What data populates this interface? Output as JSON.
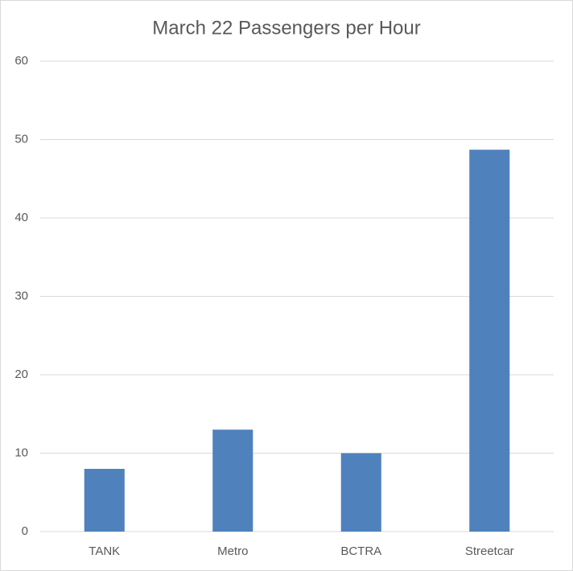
{
  "chart_data": {
    "type": "bar",
    "title": "March 22 Passengers per Hour",
    "categories": [
      "TANK",
      "Metro",
      "BCTRA",
      "Streetcar"
    ],
    "values": [
      8,
      13,
      10,
      48.7
    ],
    "color": "#4f81bd",
    "ylim": [
      0,
      60
    ],
    "yticks": [
      0,
      10,
      20,
      30,
      40,
      50,
      60
    ],
    "grid": true
  }
}
